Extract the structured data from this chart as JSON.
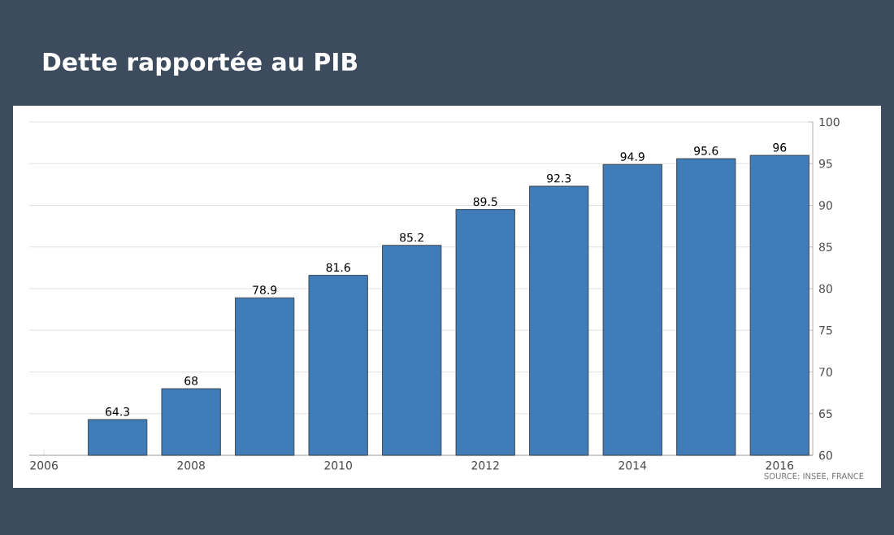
{
  "chart_data": {
    "type": "bar",
    "title": "Dette rapportée au PIB",
    "x": [
      2007,
      2008,
      2009,
      2010,
      2011,
      2012,
      2013,
      2014,
      2015,
      2016
    ],
    "values": [
      64.3,
      68,
      78.9,
      81.6,
      85.2,
      89.5,
      92.3,
      94.9,
      95.6,
      96
    ],
    "color": "#3f7cb8",
    "data_labels": true,
    "grid": "y",
    "xlim": [
      2005.8,
      2016.45
    ],
    "xticks": [
      2006,
      2008,
      2010,
      2012,
      2014,
      2016
    ],
    "ylim": [
      60,
      100
    ],
    "yticks": [
      60,
      65,
      70,
      75,
      80,
      85,
      90,
      95,
      100
    ],
    "annotations": [
      "SOURCE: INSEE, FRANCE"
    ]
  }
}
